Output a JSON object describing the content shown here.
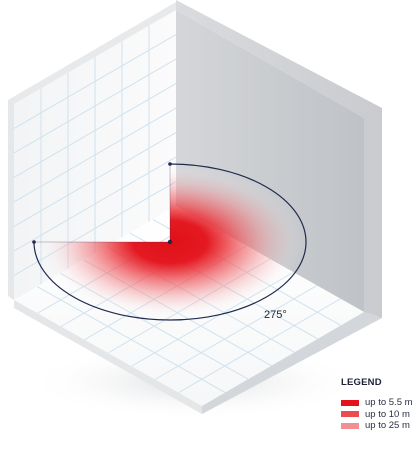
{
  "diagram": {
    "angle_label": "275°",
    "colors": {
      "zone_near": "#e3121b",
      "zone_mid": "#ec4a4f",
      "zone_far": "#f28f92",
      "arc": "#1f2a4d",
      "grid": "#cfe2ee"
    }
  },
  "legend": {
    "title": "LEGEND",
    "items": [
      {
        "label": "up to 5.5 m",
        "color": "#e3121b"
      },
      {
        "label": "up to 10 m",
        "color": "#ec4a4f"
      },
      {
        "label": "up to 25 m",
        "color": "#f28f92"
      }
    ]
  }
}
